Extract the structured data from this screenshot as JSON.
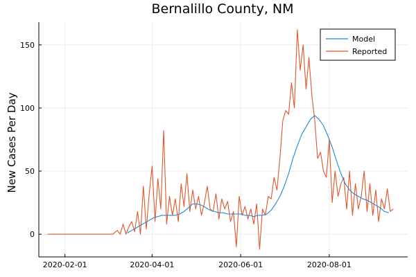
{
  "chart_data": {
    "type": "line",
    "title": "Bernalillo County, NM",
    "xlabel": "",
    "ylabel": "New Cases Per Day",
    "x_range": [
      "2020-01-14",
      "2020-09-24"
    ],
    "ylim": [
      -18,
      168
    ],
    "x_ticks": [
      {
        "date": "2020-02-01",
        "label": "2020-02-01"
      },
      {
        "date": "2020-04-01",
        "label": "2020-04-01"
      },
      {
        "date": "2020-06-01",
        "label": "2020-06-01"
      },
      {
        "date": "2020-08-01",
        "label": "2020-08-01"
      }
    ],
    "y_ticks": [
      0,
      50,
      100,
      150
    ],
    "grid": true,
    "legend_position": "top-right",
    "series": [
      {
        "name": "Model",
        "color": "#1f8ad4",
        "x": [
          "2020-03-15",
          "2020-03-18",
          "2020-03-21",
          "2020-03-24",
          "2020-03-27",
          "2020-03-30",
          "2020-04-02",
          "2020-04-05",
          "2020-04-08",
          "2020-04-11",
          "2020-04-14",
          "2020-04-17",
          "2020-04-20",
          "2020-04-23",
          "2020-04-26",
          "2020-04-29",
          "2020-05-02",
          "2020-05-05",
          "2020-05-08",
          "2020-05-11",
          "2020-05-14",
          "2020-05-17",
          "2020-05-20",
          "2020-05-23",
          "2020-05-26",
          "2020-05-29",
          "2020-06-01",
          "2020-06-04",
          "2020-06-07",
          "2020-06-10",
          "2020-06-13",
          "2020-06-16",
          "2020-06-19",
          "2020-06-22",
          "2020-06-25",
          "2020-06-28",
          "2020-07-01",
          "2020-07-04",
          "2020-07-07",
          "2020-07-10",
          "2020-07-13",
          "2020-07-16",
          "2020-07-19",
          "2020-07-22",
          "2020-07-25",
          "2020-07-28",
          "2020-07-31",
          "2020-08-03",
          "2020-08-06",
          "2020-08-09",
          "2020-08-12",
          "2020-08-15",
          "2020-08-18",
          "2020-08-21",
          "2020-08-24",
          "2020-08-27",
          "2020-08-30",
          "2020-09-02",
          "2020-09-05",
          "2020-09-08",
          "2020-09-11"
        ],
        "values": [
          1,
          3,
          5,
          7,
          9,
          11,
          13,
          14,
          15,
          15,
          15,
          15,
          16,
          18,
          21,
          24,
          24,
          23,
          21,
          19,
          18,
          17,
          17,
          16,
          16,
          16,
          16,
          15,
          15,
          14,
          15,
          15,
          16,
          19,
          24,
          30,
          38,
          48,
          60,
          70,
          79,
          85,
          91,
          94,
          91,
          86,
          78,
          69,
          58,
          48,
          40,
          35,
          32,
          30,
          28,
          27,
          25,
          23,
          21,
          18,
          17
        ]
      },
      {
        "name": "Reported",
        "color": "#e0562a",
        "x": [
          "2020-01-20",
          "2020-03-01",
          "2020-03-05",
          "2020-03-08",
          "2020-03-10",
          "2020-03-12",
          "2020-03-14",
          "2020-03-16",
          "2020-03-18",
          "2020-03-20",
          "2020-03-22",
          "2020-03-24",
          "2020-03-26",
          "2020-03-28",
          "2020-03-30",
          "2020-04-01",
          "2020-04-03",
          "2020-04-05",
          "2020-04-07",
          "2020-04-09",
          "2020-04-11",
          "2020-04-13",
          "2020-04-15",
          "2020-04-17",
          "2020-04-19",
          "2020-04-21",
          "2020-04-23",
          "2020-04-25",
          "2020-04-27",
          "2020-04-29",
          "2020-05-01",
          "2020-05-03",
          "2020-05-05",
          "2020-05-07",
          "2020-05-09",
          "2020-05-11",
          "2020-05-13",
          "2020-05-15",
          "2020-05-17",
          "2020-05-19",
          "2020-05-21",
          "2020-05-23",
          "2020-05-25",
          "2020-05-27",
          "2020-05-29",
          "2020-05-31",
          "2020-06-02",
          "2020-06-04",
          "2020-06-06",
          "2020-06-08",
          "2020-06-10",
          "2020-06-12",
          "2020-06-14",
          "2020-06-16",
          "2020-06-18",
          "2020-06-20",
          "2020-06-22",
          "2020-06-24",
          "2020-06-26",
          "2020-06-28",
          "2020-06-30",
          "2020-07-02",
          "2020-07-04",
          "2020-07-06",
          "2020-07-08",
          "2020-07-10",
          "2020-07-12",
          "2020-07-14",
          "2020-07-16",
          "2020-07-18",
          "2020-07-20",
          "2020-07-22",
          "2020-07-24",
          "2020-07-26",
          "2020-07-28",
          "2020-07-30",
          "2020-08-01",
          "2020-08-03",
          "2020-08-05",
          "2020-08-07",
          "2020-08-09",
          "2020-08-11",
          "2020-08-13",
          "2020-08-15",
          "2020-08-17",
          "2020-08-19",
          "2020-08-21",
          "2020-08-23",
          "2020-08-25",
          "2020-08-27",
          "2020-08-29",
          "2020-08-31",
          "2020-09-02",
          "2020-09-04",
          "2020-09-06",
          "2020-09-08",
          "2020-09-10",
          "2020-09-12",
          "2020-09-14"
        ],
        "values": [
          0,
          0,
          0,
          3,
          0,
          8,
          0,
          6,
          10,
          2,
          18,
          0,
          38,
          4,
          32,
          54,
          10,
          44,
          20,
          82,
          8,
          30,
          15,
          28,
          10,
          40,
          22,
          48,
          18,
          35,
          20,
          30,
          15,
          25,
          38,
          20,
          18,
          32,
          12,
          28,
          20,
          26,
          10,
          18,
          -10,
          30,
          15,
          22,
          12,
          20,
          8,
          24,
          -12,
          20,
          15,
          30,
          28,
          45,
          35,
          60,
          90,
          98,
          95,
          120,
          100,
          162,
          130,
          150,
          115,
          140,
          110,
          90,
          60,
          65,
          50,
          45,
          75,
          25,
          50,
          30,
          40,
          45,
          20,
          50,
          15,
          40,
          20,
          30,
          50,
          18,
          40,
          15,
          35,
          10,
          28,
          20,
          36,
          18,
          20
        ]
      }
    ]
  }
}
